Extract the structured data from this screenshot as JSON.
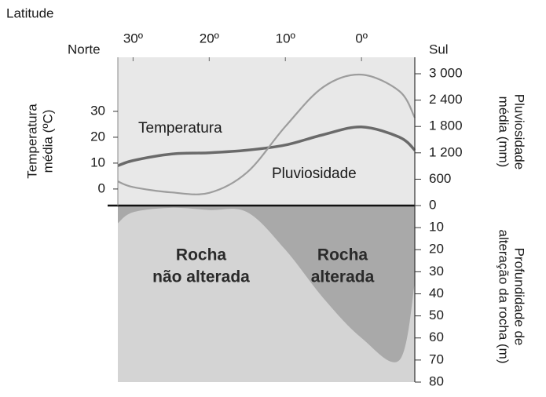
{
  "chart_data": {
    "type": "line",
    "x_title": "Latitude",
    "left_end": "Norte",
    "right_end": "Sul",
    "y_label": [
      "Temperatura",
      "média (ºC)"
    ],
    "y2_label": [
      "Pluviosidade",
      "média (mm)"
    ],
    "y3_label": [
      "Profundidade de",
      "alteração da rocha (m)"
    ],
    "x": [
      32,
      30,
      25,
      20,
      15,
      10,
      5,
      0,
      -5,
      -7
    ],
    "xlim": [
      32,
      -7
    ],
    "xticks": [
      {
        "value": 30,
        "label": "30º"
      },
      {
        "value": 20,
        "label": "20º"
      },
      {
        "value": 10,
        "label": "10º"
      },
      {
        "value": 0,
        "label": "0º"
      }
    ],
    "ylim": [
      -6.4,
      50.9
    ],
    "yticks": [
      0,
      10,
      20,
      30
    ],
    "y2lim": [
      0,
      3375
    ],
    "y2ticks": [
      0,
      600,
      {
        "value": 1200,
        "label": "1 200"
      },
      {
        "value": 1800,
        "label": "1 800"
      },
      {
        "value": 2400,
        "label": "2 400"
      },
      {
        "value": 3000,
        "label": "3 000"
      }
    ],
    "y3lim": [
      0,
      80
    ],
    "y3ticks": [
      0,
      10,
      20,
      30,
      40,
      50,
      60,
      70,
      80
    ],
    "series": [
      {
        "name": "Temperatura",
        "color": "#6a6a6a",
        "values": [
          9,
          11,
          13.5,
          14,
          15,
          17,
          21,
          24,
          20,
          15
        ]
      },
      {
        "name": "Pluviosidade",
        "color": "#9d9d9d",
        "axis": "y2",
        "values": [
          550,
          420,
          300,
          290,
          760,
          1800,
          2700,
          2980,
          2600,
          2000
        ]
      }
    ],
    "weathering_depth": {
      "color": "#a9a9a9",
      "axis": "y3",
      "values": [
        8,
        3,
        1,
        2,
        3,
        20,
        42,
        60,
        70,
        35
      ]
    },
    "annotations": {
      "altered": [
        "Rocha",
        "alterada"
      ],
      "unaltered": [
        "Rocha",
        "não alterada"
      ]
    }
  }
}
